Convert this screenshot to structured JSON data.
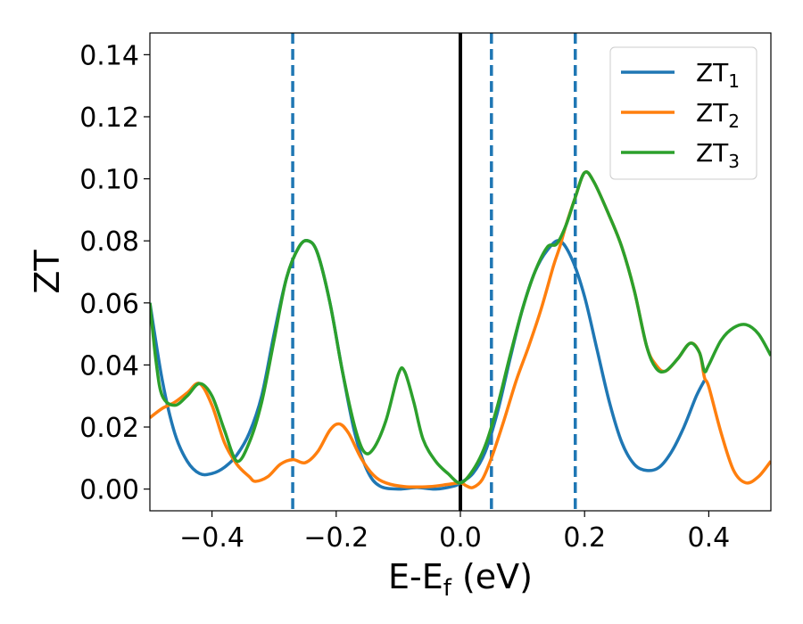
{
  "chart_data": {
    "type": "line",
    "xlabel": "E-E",
    "xlabel_subscript": "f",
    "xlabel_unit": " (eV)",
    "ylabel": "ZT",
    "xlim": [
      -0.5,
      0.5
    ],
    "ylim": [
      -0.007,
      0.147
    ],
    "xticks": [
      -0.4,
      -0.2,
      0.0,
      0.2,
      0.4
    ],
    "xtick_labels": [
      "−0.4",
      "−0.2",
      "0.0",
      "0.2",
      "0.4"
    ],
    "yticks": [
      0.0,
      0.02,
      0.04,
      0.06,
      0.08,
      0.1,
      0.12,
      0.14
    ],
    "ytick_labels": [
      "0.00",
      "0.02",
      "0.04",
      "0.06",
      "0.08",
      "0.10",
      "0.12",
      "0.14"
    ],
    "grid": false,
    "legend": {
      "position": "top-right"
    },
    "vertical_lines": [
      {
        "x": 0.0,
        "style": "solid",
        "color": "#000000"
      },
      {
        "x": -0.27,
        "style": "dashed",
        "color": "#1f77b4"
      },
      {
        "x": 0.05,
        "style": "dashed",
        "color": "#1f77b4"
      },
      {
        "x": 0.185,
        "style": "dashed",
        "color": "#1f77b4"
      }
    ],
    "series": [
      {
        "name": "ZT",
        "name_subscript": "1",
        "color": "#1f77b4",
        "points": [
          [
            -0.5,
            0.06
          ],
          [
            -0.48,
            0.035
          ],
          [
            -0.46,
            0.018
          ],
          [
            -0.44,
            0.009
          ],
          [
            -0.42,
            0.005
          ],
          [
            -0.4,
            0.005
          ],
          [
            -0.38,
            0.007
          ],
          [
            -0.36,
            0.011
          ],
          [
            -0.34,
            0.018
          ],
          [
            -0.32,
            0.03
          ],
          [
            -0.3,
            0.05
          ],
          [
            -0.28,
            0.068
          ],
          [
            -0.26,
            0.078
          ],
          [
            -0.245,
            0.08
          ],
          [
            -0.23,
            0.076
          ],
          [
            -0.21,
            0.06
          ],
          [
            -0.19,
            0.038
          ],
          [
            -0.17,
            0.018
          ],
          [
            -0.15,
            0.006
          ],
          [
            -0.13,
            0.001
          ],
          [
            -0.1,
            0.0
          ],
          [
            -0.07,
            0.0005
          ],
          [
            -0.04,
            0.0
          ],
          [
            -0.01,
            0.001
          ],
          [
            0.0,
            0.002
          ],
          [
            0.02,
            0.005
          ],
          [
            0.04,
            0.012
          ],
          [
            0.06,
            0.025
          ],
          [
            0.08,
            0.042
          ],
          [
            0.1,
            0.058
          ],
          [
            0.12,
            0.07
          ],
          [
            0.14,
            0.077
          ],
          [
            0.16,
            0.08
          ],
          [
            0.18,
            0.074
          ],
          [
            0.2,
            0.062
          ],
          [
            0.22,
            0.045
          ],
          [
            0.24,
            0.028
          ],
          [
            0.26,
            0.015
          ],
          [
            0.28,
            0.008
          ],
          [
            0.3,
            0.006
          ],
          [
            0.32,
            0.007
          ],
          [
            0.34,
            0.012
          ],
          [
            0.36,
            0.02
          ],
          [
            0.38,
            0.03
          ],
          [
            0.393,
            0.035
          ]
        ]
      },
      {
        "name": "ZT",
        "name_subscript": "2",
        "color": "#ff7f0e",
        "points": [
          [
            -0.5,
            0.023
          ],
          [
            -0.48,
            0.026
          ],
          [
            -0.46,
            0.028
          ],
          [
            -0.44,
            0.031
          ],
          [
            -0.42,
            0.034
          ],
          [
            -0.4,
            0.027
          ],
          [
            -0.38,
            0.015
          ],
          [
            -0.36,
            0.008
          ],
          [
            -0.34,
            0.004
          ],
          [
            -0.33,
            0.0025
          ],
          [
            -0.31,
            0.004
          ],
          [
            -0.29,
            0.008
          ],
          [
            -0.27,
            0.0095
          ],
          [
            -0.25,
            0.0085
          ],
          [
            -0.23,
            0.012
          ],
          [
            -0.21,
            0.019
          ],
          [
            -0.195,
            0.021
          ],
          [
            -0.18,
            0.018
          ],
          [
            -0.16,
            0.01
          ],
          [
            -0.14,
            0.0045
          ],
          [
            -0.12,
            0.002
          ],
          [
            -0.09,
            0.0008
          ],
          [
            -0.05,
            0.0008
          ],
          [
            -0.02,
            0.0015
          ],
          [
            0.0,
            0.002
          ],
          [
            0.01,
            0.001
          ],
          [
            0.02,
            0.0005
          ],
          [
            0.035,
            0.003
          ],
          [
            0.05,
            0.01
          ],
          [
            0.07,
            0.022
          ],
          [
            0.09,
            0.035
          ],
          [
            0.11,
            0.046
          ],
          [
            0.13,
            0.058
          ],
          [
            0.15,
            0.072
          ],
          [
            0.16,
            0.078
          ],
          [
            0.17,
            0.085
          ],
          [
            0.185,
            0.094
          ],
          [
            0.2,
            0.102
          ],
          [
            0.215,
            0.099
          ],
          [
            0.24,
            0.088
          ],
          [
            0.26,
            0.078
          ],
          [
            0.28,
            0.064
          ],
          [
            0.3,
            0.046
          ],
          [
            0.315,
            0.04
          ],
          [
            0.33,
            0.038
          ],
          [
            0.35,
            0.042
          ],
          [
            0.37,
            0.047
          ],
          [
            0.385,
            0.044
          ],
          [
            0.393,
            0.036
          ],
          [
            0.4,
            0.033
          ],
          [
            0.42,
            0.018
          ],
          [
            0.44,
            0.006
          ],
          [
            0.46,
            0.002
          ],
          [
            0.48,
            0.004
          ],
          [
            0.5,
            0.009
          ]
        ]
      },
      {
        "name": "ZT",
        "name_subscript": "3",
        "color": "#2ca02c",
        "points": [
          [
            -0.5,
            0.06
          ],
          [
            -0.49,
            0.041
          ],
          [
            -0.48,
            0.03
          ],
          [
            -0.46,
            0.027
          ],
          [
            -0.44,
            0.03
          ],
          [
            -0.42,
            0.034
          ],
          [
            -0.4,
            0.03
          ],
          [
            -0.38,
            0.019
          ],
          [
            -0.36,
            0.009
          ],
          [
            -0.34,
            0.015
          ],
          [
            -0.32,
            0.028
          ],
          [
            -0.3,
            0.048
          ],
          [
            -0.28,
            0.068
          ],
          [
            -0.26,
            0.078
          ],
          [
            -0.245,
            0.08
          ],
          [
            -0.23,
            0.076
          ],
          [
            -0.21,
            0.06
          ],
          [
            -0.19,
            0.038
          ],
          [
            -0.17,
            0.02
          ],
          [
            -0.155,
            0.012
          ],
          [
            -0.14,
            0.013
          ],
          [
            -0.12,
            0.022
          ],
          [
            -0.1,
            0.037
          ],
          [
            -0.09,
            0.038
          ],
          [
            -0.075,
            0.028
          ],
          [
            -0.06,
            0.016
          ],
          [
            -0.04,
            0.009
          ],
          [
            -0.02,
            0.005
          ],
          [
            0.0,
            0.002
          ],
          [
            0.02,
            0.006
          ],
          [
            0.04,
            0.014
          ],
          [
            0.06,
            0.027
          ],
          [
            0.08,
            0.043
          ],
          [
            0.1,
            0.058
          ],
          [
            0.12,
            0.07
          ],
          [
            0.14,
            0.078
          ],
          [
            0.155,
            0.079
          ],
          [
            0.17,
            0.085
          ],
          [
            0.185,
            0.094
          ],
          [
            0.2,
            0.102
          ],
          [
            0.215,
            0.099
          ],
          [
            0.24,
            0.088
          ],
          [
            0.26,
            0.078
          ],
          [
            0.28,
            0.064
          ],
          [
            0.3,
            0.046
          ],
          [
            0.315,
            0.039
          ],
          [
            0.33,
            0.038
          ],
          [
            0.35,
            0.042
          ],
          [
            0.37,
            0.047
          ],
          [
            0.385,
            0.044
          ],
          [
            0.393,
            0.038
          ],
          [
            0.4,
            0.04
          ],
          [
            0.42,
            0.048
          ],
          [
            0.44,
            0.052
          ],
          [
            0.46,
            0.053
          ],
          [
            0.48,
            0.05
          ],
          [
            0.5,
            0.043
          ]
        ]
      }
    ]
  }
}
